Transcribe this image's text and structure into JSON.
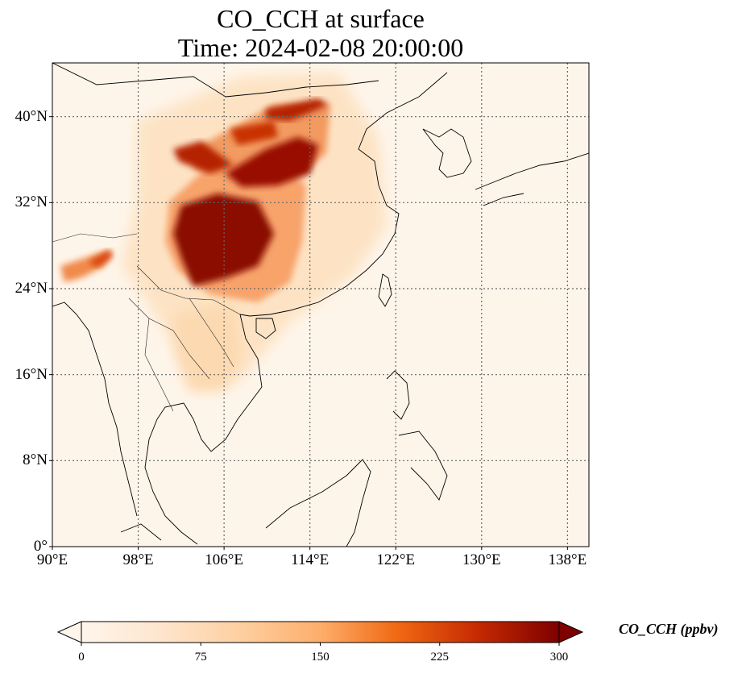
{
  "title": {
    "line1": "CO_CCH at surface",
    "line2": "Time: 2024-02-08 20:00:00"
  },
  "map": {
    "extent": {
      "lon_min": 90,
      "lon_max": 140,
      "lat_min": 0,
      "lat_max": 45
    },
    "gridlines": "dotted",
    "lon_ticks": [
      {
        "value": 90,
        "label": "90°E"
      },
      {
        "value": 98,
        "label": "98°E"
      },
      {
        "value": 106,
        "label": "106°E"
      },
      {
        "value": 114,
        "label": "114°E"
      },
      {
        "value": 122,
        "label": "122°E"
      },
      {
        "value": 130,
        "label": "130°E"
      },
      {
        "value": 138,
        "label": "138°E"
      }
    ],
    "lat_ticks": [
      {
        "value": 0,
        "label": "0°"
      },
      {
        "value": 8,
        "label": "8°N"
      },
      {
        "value": 16,
        "label": "16°N"
      },
      {
        "value": 24,
        "label": "24°N"
      },
      {
        "value": 32,
        "label": "32°N"
      },
      {
        "value": 40,
        "label": "40°N"
      }
    ]
  },
  "colorbar": {
    "label": "CO_CCH (ppbv)",
    "min": 0,
    "max": 300,
    "extend": "both",
    "colors": [
      "#fff5eb",
      "#fdd9b4",
      "#fdb97d",
      "#fd8c3b",
      "#e95e0d",
      "#c02f03",
      "#7f0000"
    ],
    "ticks": [
      {
        "value": 0,
        "label": "0"
      },
      {
        "value": 75,
        "label": "75"
      },
      {
        "value": 150,
        "label": "150"
      },
      {
        "value": 225,
        "label": "225"
      },
      {
        "value": 300,
        "label": "300"
      }
    ]
  }
}
